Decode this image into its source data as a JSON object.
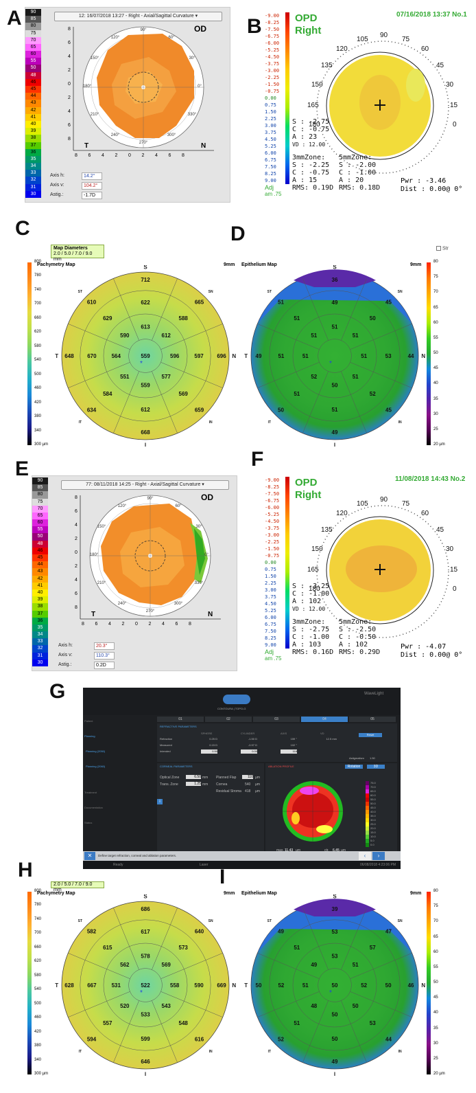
{
  "panel_labels": [
    "A",
    "B",
    "C",
    "D",
    "E",
    "F",
    "G",
    "H",
    "I"
  ],
  "panelA": {
    "dropdown": "12: 16/07/2018 13:27 - Right - Axial/Sagittal Curvature",
    "eye": "OD",
    "scale": [
      "90",
      "85",
      "80",
      "75",
      "70",
      "65",
      "60",
      "55",
      "50",
      "48",
      "46",
      "45",
      "44",
      "43",
      "42",
      "41",
      "40",
      "39",
      "38",
      "37",
      "36",
      "35",
      "34",
      "33",
      "32",
      "31",
      "30"
    ],
    "scale_colors": [
      "#1a1a1a",
      "#555",
      "#999",
      "#ddd",
      "#ff99ff",
      "#ff66ff",
      "#dd22dd",
      "#bb00bb",
      "#990077",
      "#cc0033",
      "#ee0000",
      "#ff3300",
      "#ff6600",
      "#ff8800",
      "#ffaa00",
      "#ffcc00",
      "#ffee00",
      "#ddee00",
      "#99dd00",
      "#55cc00",
      "#00aa44",
      "#009966",
      "#008888",
      "#0066aa",
      "#0044cc",
      "#0022dd",
      "#0000ee"
    ],
    "angles": [
      "90°",
      "60°",
      "30°",
      "0°",
      "330°",
      "300°",
      "270°",
      "240°",
      "210°",
      "180°",
      "150°",
      "120°"
    ],
    "side_left": "T",
    "side_right": "N",
    "y_ticks": [
      "8",
      "6",
      "4",
      "2",
      "0",
      "2",
      "4",
      "6",
      "8"
    ],
    "x_ticks": [
      "8",
      "6",
      "4",
      "2",
      "0",
      "2",
      "4",
      "6",
      "8"
    ],
    "axis_h_label": "Axis h:",
    "axis_h": "14.2°",
    "axis_v_label": "Axis v:",
    "axis_v": "104.2°",
    "astig_label": "Astig.:",
    "astig": "-1.7D"
  },
  "panelB": {
    "datetime": "07/16/2018 13:37 No.1",
    "title1": "OPD",
    "title2": "Right",
    "scale": [
      "-9.00",
      "-8.25",
      "-7.50",
      "-6.75",
      "-6.00",
      "-5.25",
      "-4.50",
      "-3.75",
      "-3.00",
      "-2.25",
      "-1.50",
      "-0.75",
      "0.00",
      "0.75",
      "1.50",
      "2.25",
      "3.00",
      "3.75",
      "4.50",
      "5.25",
      "6.00",
      "6.75",
      "7.50",
      "8.25",
      "9.00"
    ],
    "angles": [
      "90",
      "105",
      "75",
      "120",
      "60",
      "135",
      "45",
      "150",
      "30",
      "165",
      "15",
      "180",
      "0"
    ],
    "s": "S : -2.75",
    "c": "C : -0.75",
    "a": "A : 23",
    "vd": "VD : 12.00",
    "zone3": "3mmZone:",
    "z3s": "S : -2.25",
    "z3c": "C : -0.75",
    "z3a": "A : 15",
    "z3rms": "RMS: 0.19D",
    "zone5": "5mmZone:",
    "z5s": "S : -2.00",
    "z5c": "C : -1.00",
    "z5a": "A : 20",
    "z5rms": "RMS: 0.18D",
    "pwr": "Pwr : -3.46",
    "dist": "Dist : 0.00@ 0°",
    "adj": "Adj",
    "adj2": "am .75"
  },
  "panelC": {
    "badge_title": "Map Diameters",
    "badge_value": "2.0 / 5.0 / 7.0 / 9.0 mm",
    "title": "Pachymetry Map",
    "size": "9mm",
    "scale": [
      "800",
      "780",
      "740",
      "700",
      "660",
      "620",
      "580",
      "540",
      "500",
      "460",
      "420",
      "380",
      "340",
      "300 µm"
    ],
    "sectors": [
      "S",
      "SN",
      "N",
      "IN",
      "I",
      "IT",
      "T",
      "ST"
    ],
    "values": [
      "712",
      "665",
      "696",
      "659",
      "668",
      "634",
      "648",
      "610",
      "622",
      "588",
      "597",
      "569",
      "612",
      "584",
      "670",
      "629",
      "613",
      "612",
      "596",
      "577",
      "559",
      "551",
      "564",
      "590",
      "559"
    ]
  },
  "panelD": {
    "checkbox_label": "Str",
    "title": "Epithelium Map",
    "size": "9mm",
    "scale": [
      "80",
      "75",
      "70",
      "65",
      "60",
      "55",
      "50",
      "45",
      "40",
      "35",
      "30",
      "25",
      "20 µm"
    ],
    "sectors": [
      "S",
      "SN",
      "N",
      "IN",
      "I",
      "IT",
      "T",
      "ST"
    ],
    "values": [
      "36",
      "45",
      "44",
      "45",
      "49",
      "50",
      "49",
      "51",
      "49",
      "50",
      "53",
      "52",
      "51",
      "51",
      "51",
      "51",
      "51",
      "51",
      "51",
      "51",
      "50",
      "52",
      "51",
      "51"
    ]
  },
  "panelE": {
    "dropdown": "77: 08/11/2018 14:25 - Right - Axial/Sagittal Curvature",
    "eye": "OD",
    "angles": [
      "90°",
      "60°",
      "30°",
      "0°",
      "330°",
      "300°",
      "270°",
      "240°",
      "210°",
      "180°",
      "150°",
      "120°"
    ],
    "side_left": "T",
    "side_right": "N",
    "y_ticks": [
      "8",
      "6",
      "4",
      "2",
      "0",
      "2",
      "4",
      "6",
      "8"
    ],
    "x_ticks": [
      "8",
      "6",
      "4",
      "2",
      "0",
      "2",
      "4",
      "6",
      "8"
    ],
    "axis_h_label": "Axis h:",
    "axis_h": "20.3°",
    "axis_v_label": "Axis v:",
    "axis_v": "110.3°",
    "astig_label": "Astig.:",
    "astig": "0.2D"
  },
  "panelF": {
    "datetime": "11/08/2018 14:43 No.2",
    "title1": "OPD",
    "title2": "Right",
    "s": "S : -3.25",
    "c": "C : -1.00",
    "a": "A : 102",
    "vd": "VD : 12.00",
    "zone3": "3mmZone:",
    "z3s": "S : -2.75",
    "z3c": "C : -1.00",
    "z3a": "A : 103",
    "z3rms": "RMS: 0.16D",
    "zone5": "5mmZone:",
    "z5s": "S : -2.50",
    "z5c": "C : -0.50",
    "z5a": "A : 102",
    "z5rms": "RMS: 0.29D",
    "pwr": "Pwr : -4.07",
    "dist": "Dist : 0.00@ 0°",
    "adj": "Adj",
    "adj2": "am .75"
  },
  "panelG": {
    "brand": "WaveLight",
    "logo_text": "CONTOURA | TOPO-G",
    "steps": [
      "01",
      "02",
      "03",
      "04",
      "05"
    ],
    "sidebar": [
      "Patient",
      "Planning",
      "Planning (2050)",
      "Planning (2060)",
      "Treatment",
      "Documentation",
      "Status"
    ],
    "section_refraction": "REFRACTIVE PARAMETERS",
    "cols": [
      "SPHERE",
      "CYLINDER",
      "AXIS",
      "VD"
    ],
    "rows": [
      {
        "label": "Refraction",
        "sph": "0.25 D",
        "cyl": "-1.50 D",
        "axis": "159 °",
        "vd": "12.5 mm"
      },
      {
        "label": "Measured",
        "sph": "0.15 D",
        "cyl": "-0.97 D",
        "axis": "102 °",
        "vd": ""
      },
      {
        "label": "Intended",
        "sph": "0.50",
        "cyl": "0.00",
        "axis": "118",
        "vd": ""
      }
    ],
    "reset_btn": "Reset",
    "astig_label": "Astigmatism",
    "astig_val": "1.50",
    "section_corneal": "CORNEAL PARAMETERS",
    "optical_zone_label": "Optical Zone",
    "optical_zone": "6.50",
    "trans_zone_label": "Trans. Zone",
    "trans_zone": "1.25",
    "unit_mm": "mm",
    "flap_label": "Planned Flap",
    "flap": "110",
    "flap_unit": "µm",
    "cornea_label": "Cornea",
    "cornea": "540",
    "cornea_unit": "µm",
    "residual_label": "Residual Stroma",
    "residual": "418",
    "residual_unit": "µm",
    "section_ablation": "ABLATION PROFILE",
    "abl_btn1": "Rotation",
    "abl_btn2": "3D",
    "max_label": "max.",
    "max_val": "11.43",
    "max_unit": "µm",
    "ctr_label": "ctr.",
    "ctr_val": "6.45",
    "ctr_unit": "µm",
    "ablation_scale": [
      "75.0",
      "70.0",
      "65.0",
      "60.0",
      "55.0",
      "50.0",
      "45.0",
      "40.0",
      "35.0",
      "30.0",
      "25.0",
      "20.0",
      "15.0",
      "10.0",
      "5.0",
      "0.0"
    ],
    "status_msg": "Define target refraction, corneal and ablation parameters.",
    "footer_ready": "Ready",
    "footer_user": "Laser",
    "footer_time": "06/08/2018 4:23:06 PM"
  },
  "panelH": {
    "badge_value": "2.0 / 5.0 / 7.0 / 9.0 mm",
    "title": "Pachymetry Map",
    "size": "9mm",
    "scale": [
      "800",
      "780",
      "740",
      "700",
      "660",
      "620",
      "580",
      "540",
      "500",
      "460",
      "420",
      "380",
      "340",
      "300 µm"
    ],
    "sectors": [
      "S",
      "SN",
      "N",
      "IN",
      "I",
      "IT",
      "T",
      "ST"
    ],
    "values": [
      "686",
      "640",
      "669",
      "616",
      "646",
      "594",
      "628",
      "582",
      "617",
      "573",
      "590",
      "548",
      "599",
      "557",
      "667",
      "615",
      "578",
      "569",
      "558",
      "543",
      "533",
      "520",
      "531",
      "562",
      "522"
    ]
  },
  "panelI": {
    "title": "Epithelium Map",
    "size": "9mm",
    "scale": [
      "80",
      "75",
      "70",
      "65",
      "60",
      "55",
      "50",
      "45",
      "40",
      "35",
      "30",
      "25",
      "20 µm"
    ],
    "sectors": [
      "S",
      "SN",
      "N",
      "IN",
      "I",
      "IT",
      "T",
      "ST"
    ],
    "values": [
      "39",
      "47",
      "46",
      "44",
      "49",
      "52",
      "50",
      "49",
      "53",
      "57",
      "50",
      "53",
      "50",
      "51",
      "52",
      "51",
      "53",
      "51",
      "52",
      "50",
      "50",
      "48",
      "51",
      "49",
      "50"
    ]
  }
}
